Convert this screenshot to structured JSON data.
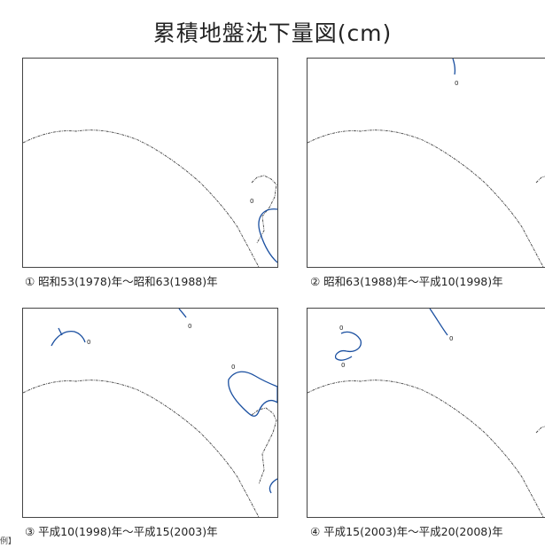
{
  "title": "累積地盤沈下量図(cm)",
  "panels": [
    {
      "caption": "① 昭和53(1978)年～昭和63(1988)年",
      "contour_labels": [
        "0"
      ]
    },
    {
      "caption": "② 昭和63(1988)年～平成10(1998)年",
      "contour_labels": [
        "0"
      ]
    },
    {
      "caption": "③ 平成10(1998)年～平成15(2003)年",
      "contour_labels": [
        "0",
        "0",
        "0"
      ]
    },
    {
      "caption": "④ 平成15(2003)年～平成20(2008)年",
      "contour_labels": [
        "0",
        "0",
        "0"
      ]
    }
  ],
  "legend_stub": "例】",
  "colors": {
    "contour": "#1a4fa0",
    "coastline": "#444444",
    "frame": "#444444"
  }
}
